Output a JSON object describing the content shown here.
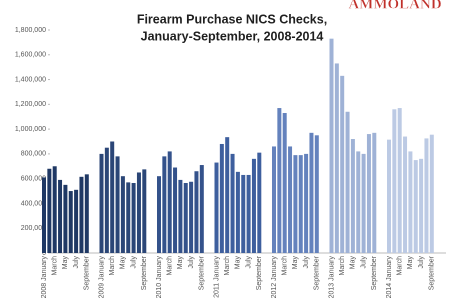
{
  "chart_data": {
    "type": "bar",
    "title": "Firearm Purchase NICS Checks,",
    "subtitle": "January-September, 2008-2014",
    "watermark": "AMMOLAND",
    "ylim": [
      0,
      1800000
    ],
    "yticks": [
      0,
      {
        "value": 200000,
        "label": "200,000"
      },
      {
        "value": 400000,
        "label": "400,000"
      },
      {
        "value": 600000,
        "label": "600,000"
      },
      {
        "value": 800000,
        "label": "800,000"
      },
      {
        "value": 1000000,
        "label": "1,000,000"
      },
      {
        "value": 1200000,
        "label": "1,200,000"
      },
      {
        "value": 1400000,
        "label": "1,400,000"
      },
      {
        "value": 1600000,
        "label": "1,600,000"
      },
      {
        "value": 1800000,
        "label": "1,800,000"
      }
    ],
    "groups": [
      {
        "color": "#1f3864",
        "categories": [
          "2008 January",
          null,
          "March",
          null,
          "May",
          null,
          "July",
          null,
          "September"
        ],
        "values": [
          610000,
          680000,
          700000,
          590000,
          550000,
          500000,
          510000,
          615000,
          635000
        ]
      },
      {
        "color": "#2b4677",
        "categories": [
          "2009 January",
          null,
          "March",
          null,
          "May",
          null,
          "July",
          null,
          "September"
        ],
        "values": [
          800000,
          850000,
          900000,
          780000,
          620000,
          570000,
          565000,
          650000,
          675000
        ]
      },
      {
        "color": "#34528b",
        "categories": [
          "2010 January",
          null,
          "March",
          null,
          "May",
          null,
          "July",
          null,
          "September"
        ],
        "values": [
          620000,
          780000,
          820000,
          690000,
          590000,
          565000,
          575000,
          660000,
          710000
        ]
      },
      {
        "color": "#3e5f9e",
        "categories": [
          "2011 January",
          null,
          "March",
          null,
          "May",
          null,
          "July",
          null,
          "September"
        ],
        "values": [
          730000,
          880000,
          935000,
          800000,
          655000,
          630000,
          630000,
          760000,
          810000
        ]
      },
      {
        "color": "#6482bd",
        "categories": [
          "2012 January",
          null,
          "March",
          null,
          "May",
          null,
          "July",
          null,
          "September"
        ],
        "values": [
          860000,
          1170000,
          1130000,
          860000,
          790000,
          790000,
          800000,
          970000,
          950000
        ]
      },
      {
        "color": "#9fb2d6",
        "categories": [
          "2013 January",
          null,
          "March",
          null,
          "May",
          null,
          "July",
          null,
          "September"
        ],
        "values": [
          1730000,
          1530000,
          1430000,
          1140000,
          920000,
          820000,
          800000,
          960000,
          970000
        ]
      },
      {
        "color": "#bccae4",
        "categories": [
          "2014 January",
          null,
          "March",
          null,
          "May",
          null,
          "July",
          null,
          "September"
        ],
        "values": [
          915000,
          1160000,
          1170000,
          940000,
          820000,
          750000,
          760000,
          925000,
          955000
        ]
      }
    ]
  }
}
